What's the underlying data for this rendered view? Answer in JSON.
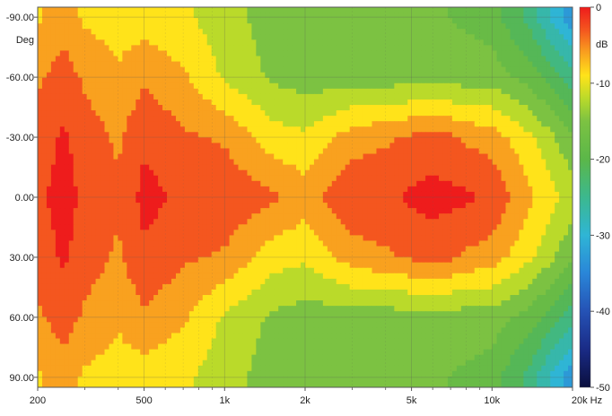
{
  "chart_data": {
    "type": "heatmap",
    "title": "",
    "x_axis": {
      "unit": "Hz",
      "scale": "log",
      "range": [
        200,
        20000
      ],
      "major_ticks": [
        {
          "value": 200,
          "label": "200"
        },
        {
          "value": 500,
          "label": "500"
        },
        {
          "value": 1000,
          "label": "1k"
        },
        {
          "value": 2000,
          "label": "2k"
        },
        {
          "value": 5000,
          "label": "5k"
        },
        {
          "value": 10000,
          "label": "10k"
        },
        {
          "value": 20000,
          "label": "20k Hz"
        }
      ],
      "minor_ticks": [
        300,
        400,
        600,
        700,
        800,
        900,
        3000,
        4000,
        6000,
        7000,
        8000,
        9000
      ]
    },
    "y_axis": {
      "unit": "Deg",
      "range": [
        -95,
        95
      ],
      "ticks": [
        {
          "value": -90,
          "label": "-90.00"
        },
        {
          "value": -60,
          "label": "-60.00"
        },
        {
          "value": -30,
          "label": "-30.00"
        },
        {
          "value": 0,
          "label": "0.00"
        },
        {
          "value": 30,
          "label": "30.00"
        },
        {
          "value": 60,
          "label": "60.00"
        },
        {
          "value": 90,
          "label": "90.00"
        }
      ]
    },
    "colorbar": {
      "unit": "dB",
      "range": [
        -50,
        0
      ],
      "ticks": [
        {
          "value": 0,
          "label": "0"
        },
        {
          "value": -10,
          "label": "-10"
        },
        {
          "value": -20,
          "label": "-20"
        },
        {
          "value": -30,
          "label": "-30"
        },
        {
          "value": -40,
          "label": "-40"
        },
        {
          "value": -50,
          "label": "-50"
        }
      ],
      "stops": [
        {
          "db": 0,
          "color": "#ee1c1c"
        },
        {
          "db": -3,
          "color": "#f4561f"
        },
        {
          "db": -6,
          "color": "#f9a11f"
        },
        {
          "db": -9,
          "color": "#ffe31a"
        },
        {
          "db": -12,
          "color": "#bada2a"
        },
        {
          "db": -15,
          "color": "#7cc242"
        },
        {
          "db": -20,
          "color": "#5bb749"
        },
        {
          "db": -25,
          "color": "#3cb88e"
        },
        {
          "db": -30,
          "color": "#2fb5d5"
        },
        {
          "db": -35,
          "color": "#2a86d8"
        },
        {
          "db": -40,
          "color": "#2552b5"
        },
        {
          "db": -45,
          "color": "#1a2b86"
        },
        {
          "db": -50,
          "color": "#0a0f3d"
        }
      ]
    },
    "grid": true,
    "contour_levels_db": 3,
    "sampled_values_db": {
      "freq_hz": [
        200,
        250,
        300,
        400,
        500,
        700,
        1000,
        1500,
        2000,
        3000,
        4000,
        5000,
        6000,
        8000,
        10000,
        14000,
        20000
      ],
      "angle_deg": [
        -90,
        -60,
        -30,
        0,
        30,
        60,
        90
      ],
      "db": [
        [
          -8,
          -6,
          -8,
          -9,
          -9,
          -10,
          -12,
          -15,
          -16,
          -16,
          -16,
          -16,
          -16,
          -17,
          -18,
          -24,
          -34
        ],
        [
          -5,
          -3,
          -5,
          -7,
          -5,
          -7,
          -11,
          -14,
          -15,
          -15,
          -15,
          -15,
          -15,
          -15,
          -15,
          -18,
          -24
        ],
        [
          -3,
          -1,
          -3,
          -5,
          -2,
          -4,
          -5,
          -9,
          -10,
          -6,
          -5,
          -4,
          -3,
          -5,
          -6,
          -10,
          -16
        ],
        [
          -2,
          -0.5,
          -2,
          -4,
          -0.5,
          -2,
          -2,
          -4,
          -6,
          -2,
          -2,
          -1,
          -0.5,
          -1,
          -2,
          -7,
          -12
        ],
        [
          -3,
          -1,
          -3,
          -5,
          -2,
          -4,
          -5,
          -9,
          -10,
          -6,
          -5,
          -4,
          -3,
          -5,
          -6,
          -10,
          -16
        ],
        [
          -5,
          -3,
          -5,
          -7,
          -5,
          -7,
          -11,
          -14,
          -15,
          -15,
          -15,
          -15,
          -15,
          -15,
          -15,
          -18,
          -24
        ],
        [
          -8,
          -6,
          -8,
          -9,
          -9,
          -10,
          -12,
          -15,
          -16,
          -16,
          -16,
          -16,
          -16,
          -17,
          -18,
          -24,
          -34
        ]
      ]
    }
  }
}
